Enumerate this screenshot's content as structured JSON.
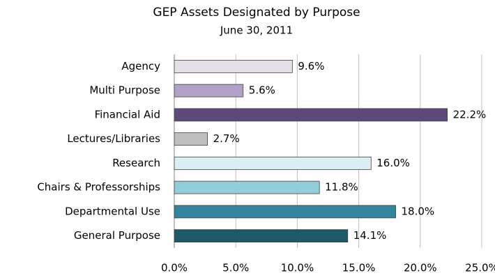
{
  "chart_data": {
    "type": "barh",
    "title": "GEP Assets Designated by Purpose",
    "subtitle": "June 30, 2011",
    "categories": [
      "Agency",
      "Multi Purpose",
      "Financial Aid",
      "Lectures/Libraries",
      "Research",
      "Chairs & Professorships",
      "Departmental Use",
      "General Purpose"
    ],
    "values": [
      9.6,
      5.6,
      22.2,
      2.7,
      16.0,
      11.8,
      18.0,
      14.1
    ],
    "value_labels": [
      "9.6%",
      "5.6%",
      "22.2%",
      "2.7%",
      "16.0%",
      "11.8%",
      "18.0%",
      "14.1%"
    ],
    "colors": [
      "#e5dfec",
      "#b2a1c7",
      "#5f497a",
      "#bfbfbf",
      "#daeef3",
      "#92cddc",
      "#31849b",
      "#215868"
    ],
    "xlim": [
      0,
      25
    ],
    "xticks": [
      {
        "value": 0,
        "label": "0.0%"
      },
      {
        "value": 5,
        "label": "5.0%"
      },
      {
        "value": 10,
        "label": "10.0%"
      },
      {
        "value": 15,
        "label": "15.0%"
      },
      {
        "value": 20,
        "label": "20.0%"
      },
      {
        "value": 25,
        "label": "25.0%"
      }
    ],
    "grid": true
  }
}
